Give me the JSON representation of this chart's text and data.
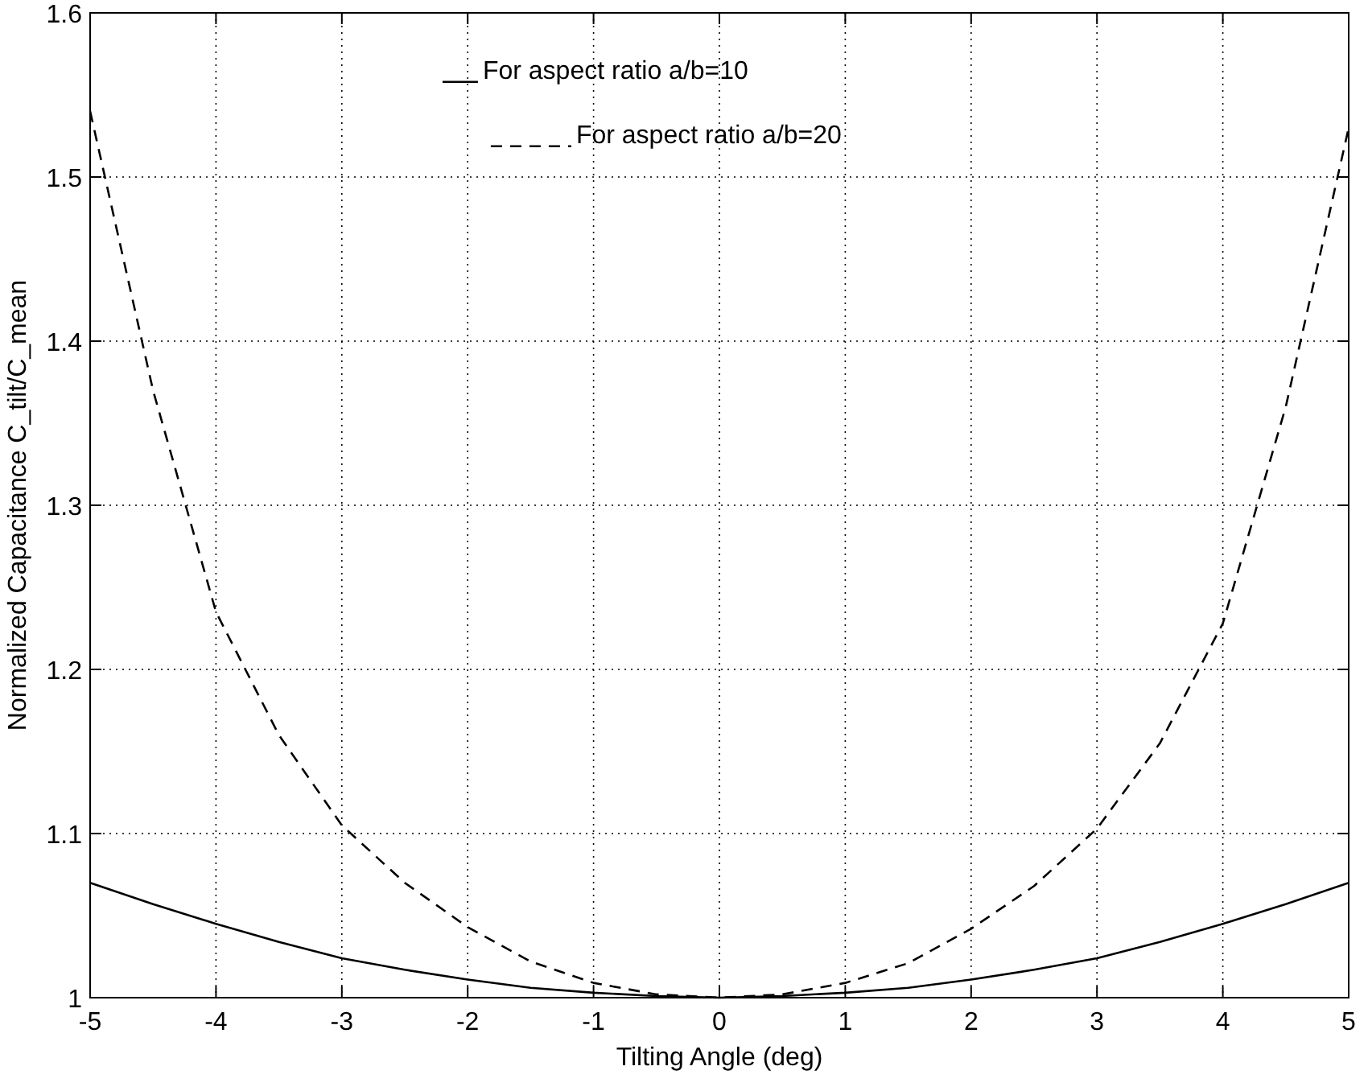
{
  "chart_data": {
    "type": "line",
    "xlabel": "Tilting Angle (deg)",
    "ylabel": "Normalized Capacitance C_tilt/C_mean",
    "xlim": [
      -5,
      5
    ],
    "ylim": [
      1,
      1.6
    ],
    "xticks": [
      -5,
      -4,
      -3,
      -2,
      -1,
      0,
      1,
      2,
      3,
      4,
      5
    ],
    "yticks": [
      1,
      1.1,
      1.2,
      1.3,
      1.4,
      1.5,
      1.6
    ],
    "grid": true,
    "legend": "top",
    "x": [
      -5,
      -4.5,
      -4,
      -3.5,
      -3,
      -2.5,
      -2,
      -1.5,
      -1,
      -0.5,
      0,
      0.5,
      1,
      1.5,
      2,
      2.5,
      3,
      3.5,
      4,
      4.5,
      5
    ],
    "series": [
      {
        "name": "For aspect ratio a/b=10",
        "color": "#000000",
        "line_style": "solid",
        "values": [
          1.07,
          1.057,
          1.045,
          1.034,
          1.024,
          1.017,
          1.011,
          1.006,
          1.003,
          1.001,
          1.0,
          1.001,
          1.003,
          1.006,
          1.011,
          1.017,
          1.024,
          1.034,
          1.045,
          1.057,
          1.07
        ]
      },
      {
        "name": "For aspect ratio a/b=20",
        "color": "#000000",
        "line_style": "dashed",
        "values": [
          1.54,
          1.37,
          1.235,
          1.16,
          1.105,
          1.07,
          1.043,
          1.022,
          1.009,
          1.002,
          1.0,
          1.002,
          1.009,
          1.021,
          1.042,
          1.068,
          1.103,
          1.155,
          1.228,
          1.36,
          1.53
        ]
      }
    ]
  }
}
